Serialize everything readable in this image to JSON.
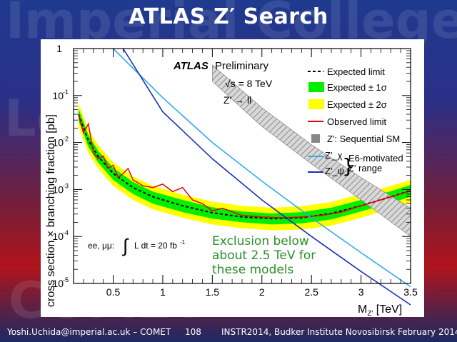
{
  "slide": {
    "title": "ATLAS Z′ Search",
    "watermark_top": "Imperial College",
    "watermark_left": "Lo",
    "watermark_bottom": "COMET"
  },
  "footer": {
    "email": "Yoshi.Uchida@imperial.ac.uk – COMET",
    "page": "108",
    "conference": "INSTR2014, Budker Institute Novosibirsk February 2014"
  },
  "plot": {
    "atlas_label": "ATLAS",
    "preliminary": "Preliminary",
    "sqrt_s": "√s = 8 TeV",
    "process": "Z′ → ll",
    "lumi_prefix": "ee, μμ:",
    "lumi_text": "L dt = 20 fb",
    "lumi_exp": "-1",
    "annotation": [
      "Exclusion below",
      "about 2.5 TeV for",
      "these models"
    ],
    "e6_label": [
      "E6-motivated",
      "Z′ range"
    ],
    "y_sup_labels": [
      "1",
      "10",
      "10",
      "10",
      "10",
      "10"
    ],
    "y_sup_exps": [
      "",
      "-1",
      "-2",
      "-3",
      "-4",
      "-5"
    ],
    "x_tick_labels": [
      "0.5",
      "1",
      "1.5",
      "2",
      "2.5",
      "3",
      "3.5"
    ],
    "colors": {
      "green": "#00ee00",
      "yellow": "#ffff00",
      "observed": "#ee0000",
      "zchi": "#33aaee",
      "zpsi": "#1a2fbb",
      "ssm": "#999999",
      "annotation": "#2a8f2a"
    }
  },
  "chart_data": {
    "type": "line",
    "xlabel": "M_{Z′} [TeV]",
    "ylabel": "cross section × branching fraction [pb]",
    "xlim": [
      0.1,
      3.5
    ],
    "ylim": [
      1e-05,
      1
    ],
    "yscale": "log",
    "legend": "top-right",
    "series": [
      {
        "name": "Expected limit",
        "x": [
          0.15,
          0.25,
          0.35,
          0.5,
          0.7,
          0.9,
          1.2,
          1.5,
          1.8,
          2.1,
          2.4,
          2.7,
          3.0,
          3.3,
          3.5
        ],
        "values": [
          0.04,
          0.011,
          0.005,
          0.0022,
          0.0011,
          0.0007,
          0.00045,
          0.00032,
          0.00026,
          0.00024,
          0.00025,
          0.00031,
          0.00045,
          0.0007,
          0.00095
        ]
      },
      {
        "name": "Expected ± 1σ",
        "x": [
          0.15,
          0.25,
          0.35,
          0.5,
          0.7,
          0.9,
          1.2,
          1.5,
          1.8,
          2.1,
          2.4,
          2.7,
          3.0,
          3.3,
          3.5
        ],
        "low": [
          0.03,
          0.008,
          0.0037,
          0.0016,
          0.0008,
          0.0005,
          0.00033,
          0.00024,
          0.0002,
          0.00018,
          0.00019,
          0.00023,
          0.00034,
          0.00052,
          0.0007
        ],
        "high": [
          0.053,
          0.0145,
          0.0066,
          0.0029,
          0.00145,
          0.0009,
          0.0006,
          0.00042,
          0.00034,
          0.00031,
          0.00033,
          0.00041,
          0.0006,
          0.00092,
          0.00125
        ]
      },
      {
        "name": "Expected ± 2σ",
        "x": [
          0.15,
          0.25,
          0.35,
          0.5,
          0.7,
          0.9,
          1.2,
          1.5,
          1.8,
          2.1,
          2.4,
          2.7,
          3.0,
          3.3,
          3.5
        ],
        "low": [
          0.022,
          0.006,
          0.0028,
          0.0012,
          0.0006,
          0.00038,
          0.00025,
          0.00018,
          0.00015,
          0.000135,
          0.00014,
          0.00017,
          0.00025,
          0.00039,
          0.00052
        ],
        "high": [
          0.07,
          0.019,
          0.0087,
          0.0038,
          0.0019,
          0.0012,
          0.00078,
          0.00055,
          0.00045,
          0.00041,
          0.00044,
          0.00054,
          0.0008,
          0.0012,
          0.0016
        ]
      },
      {
        "name": "Observed limit",
        "x": [
          0.15,
          0.2,
          0.25,
          0.3,
          0.35,
          0.4,
          0.45,
          0.5,
          0.55,
          0.6,
          0.65,
          0.7,
          0.8,
          0.9,
          1.0,
          1.1,
          1.2,
          1.3,
          1.4,
          1.5,
          1.6,
          1.8,
          2.0,
          2.2,
          2.4,
          2.6,
          2.8,
          3.0,
          3.2,
          3.4,
          3.5
        ],
        "values": [
          0.04,
          0.016,
          0.025,
          0.006,
          0.0045,
          0.0052,
          0.0028,
          0.0033,
          0.0018,
          0.0022,
          0.0028,
          0.0016,
          0.0012,
          0.0011,
          0.0013,
          0.0009,
          0.0011,
          0.0006,
          0.0005,
          0.00035,
          0.0004,
          0.00028,
          0.00026,
          0.00025,
          0.00026,
          0.00028,
          0.00033,
          0.00045,
          0.0006,
          0.0008,
          0.00095
        ]
      },
      {
        "name": "Z′: Sequential SM",
        "x": [
          1.5,
          2.0,
          2.5,
          3.0,
          3.5
        ],
        "low": [
          0.2,
          0.022,
          0.0035,
          0.0006,
          0.0001
        ],
        "high": [
          0.45,
          0.055,
          0.009,
          0.0018,
          0.0004
        ]
      },
      {
        "name": "Z′_χ",
        "x": [
          0.5,
          1.0,
          1.5,
          2.0,
          2.5,
          3.0,
          3.5
        ],
        "values": [
          1.0,
          0.09,
          0.01,
          0.0015,
          0.00025,
          4.5e-05,
          8.5e-06
        ]
      },
      {
        "name": "Z′_ψ",
        "x": [
          0.6,
          1.0,
          1.5,
          2.0,
          2.5,
          3.0,
          3.5
        ],
        "values": [
          1.0,
          0.045,
          0.0045,
          0.0006,
          0.0001,
          1.8e-05,
          3.5e-06
        ]
      }
    ]
  }
}
